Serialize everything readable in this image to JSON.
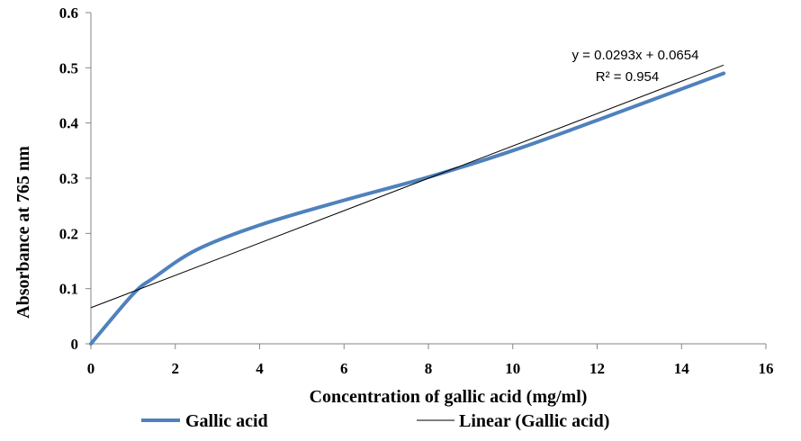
{
  "chart_data": {
    "type": "line",
    "xlabel": "Concentration  of gallic acid (mg/ml)",
    "ylabel": "Absorbance at 765 nm",
    "xlim": [
      0,
      16
    ],
    "ylim": [
      0,
      0.6
    ],
    "x_ticks": [
      0,
      2,
      4,
      6,
      8,
      10,
      12,
      14,
      16
    ],
    "x_tick_labels": [
      "0",
      "2",
      "4",
      "6",
      "8",
      "10",
      "12",
      "14",
      "16"
    ],
    "y_ticks": [
      0,
      0.1,
      0.2,
      0.3,
      0.4,
      0.5,
      0.6
    ],
    "y_tick_labels": [
      "0",
      "0.1",
      "0.2",
      "0.3",
      "0.4",
      "0.5",
      "0.6"
    ],
    "grid": false,
    "legend_position": "bottom",
    "series": [
      {
        "name": "Gallic acid",
        "color": "#4f81bd",
        "x": [
          0,
          1,
          1.5,
          2.5,
          4,
          6,
          8,
          10,
          12,
          15
        ],
        "y": [
          0,
          0.09,
          0.12,
          0.17,
          0.215,
          0.26,
          0.302,
          0.35,
          0.405,
          0.49
        ]
      }
    ],
    "trendline": {
      "name": "Linear (Gallic acid)",
      "color": "#000000",
      "slope": 0.0293,
      "intercept": 0.0654,
      "x_range": [
        0,
        15
      ],
      "equation": "y = 0.0293x + 0.0654",
      "r_squared": "R² = 0.954"
    }
  }
}
